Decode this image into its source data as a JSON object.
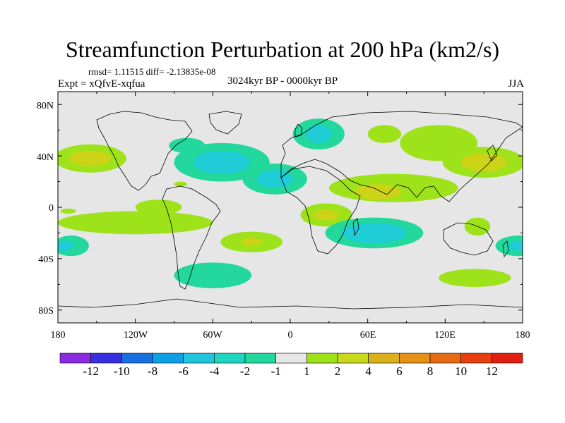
{
  "title": "Streamfunction Perturbation at 200 hPa (km2/s)",
  "stats": "rmsd= 1.11515 diff= -2.13835e-08",
  "experiment": "Expt = xQfvE-xqfua",
  "period": "3024kyr BP - 0000kyr BP",
  "season": "JJA",
  "axes": {
    "x_tick_labels": [
      "180",
      "120W",
      "60W",
      "0",
      "60E",
      "120E",
      "180"
    ],
    "y_tick_labels": [
      "80N",
      "40N",
      "0",
      "40S",
      "80S"
    ]
  },
  "colorbar": {
    "labels": [
      "-12",
      "-10",
      "-8",
      "-6",
      "-4",
      "-2",
      "-1",
      "1",
      "2",
      "4",
      "6",
      "8",
      "10",
      "12"
    ],
    "colors": [
      "#8a2be2",
      "#3a2fe0",
      "#1a6fe0",
      "#0ea0e6",
      "#20c4dc",
      "#1ed6c0",
      "#22d89c",
      "#e6e6e6",
      "#9ee21a",
      "#c8d81a",
      "#dcb01a",
      "#e69016",
      "#e66a12",
      "#e6400e",
      "#e02010"
    ]
  },
  "colors": {
    "background": "#e6e6e6",
    "neg1": "#22d89c",
    "neg2": "#1ecdd6",
    "pos1": "#9ee21a",
    "pos2": "#cdd418",
    "pos3": "#dcb01a"
  },
  "chart_data": {
    "type": "heatmap",
    "title": "Streamfunction Perturbation at 200 hPa (km2/s)",
    "xlabel": "",
    "ylabel": "",
    "xlim": [
      -180,
      180
    ],
    "ylim": [
      -90,
      90
    ],
    "level_boundaries": [
      -12,
      -10,
      -8,
      -6,
      -4,
      -2,
      -1,
      1,
      2,
      4,
      6,
      8,
      10,
      12
    ],
    "features": [
      {
        "sign": "positive",
        "lon": -155,
        "lat": 38,
        "rx": 28,
        "ry": 11,
        "level": 2
      },
      {
        "sign": "positive",
        "lon": -155,
        "lat": 38,
        "rx": 16,
        "ry": 6,
        "level": 4
      },
      {
        "sign": "negative",
        "lon": -80,
        "lat": 48,
        "rx": 14,
        "ry": 6,
        "level": -1
      },
      {
        "sign": "negative",
        "lon": -53,
        "lat": 35,
        "rx": 37,
        "ry": 15,
        "level": -1
      },
      {
        "sign": "negative",
        "lon": -53,
        "lat": 35,
        "rx": 22,
        "ry": 9,
        "level": -2
      },
      {
        "sign": "negative",
        "lon": -12,
        "lat": 22,
        "rx": 25,
        "ry": 12,
        "level": -1
      },
      {
        "sign": "negative",
        "lon": -12,
        "lat": 22,
        "rx": 14,
        "ry": 7,
        "level": -2
      },
      {
        "sign": "negative",
        "lon": 22,
        "lat": 57,
        "rx": 20,
        "ry": 12,
        "level": -1
      },
      {
        "sign": "negative",
        "lon": 22,
        "lat": 57,
        "rx": 10,
        "ry": 7,
        "level": -2
      },
      {
        "sign": "positive",
        "lon": 73,
        "lat": 57,
        "rx": 13,
        "ry": 7,
        "level": 2
      },
      {
        "sign": "positive",
        "lon": 115,
        "lat": 50,
        "rx": 30,
        "ry": 14,
        "level": 2
      },
      {
        "sign": "positive",
        "lon": 150,
        "lat": 35,
        "rx": 32,
        "ry": 12,
        "level": 2
      },
      {
        "sign": "positive",
        "lon": 150,
        "lat": 35,
        "rx": 18,
        "ry": 7,
        "level": 4
      },
      {
        "sign": "positive",
        "lon": 80,
        "lat": 15,
        "rx": 50,
        "ry": 11,
        "level": 2
      },
      {
        "sign": "positive",
        "lon": 68,
        "lat": 12,
        "rx": 18,
        "ry": 6,
        "level": 4
      },
      {
        "sign": "positive",
        "lon": 28,
        "lat": -6,
        "rx": 20,
        "ry": 9,
        "level": 2
      },
      {
        "sign": "positive",
        "lon": 28,
        "lat": -6,
        "rx": 10,
        "ry": 4,
        "level": 4
      },
      {
        "sign": "negative",
        "lon": 65,
        "lat": -20,
        "rx": 38,
        "ry": 12,
        "level": -1
      },
      {
        "sign": "negative",
        "lon": 65,
        "lat": -20,
        "rx": 25,
        "ry": 8,
        "level": -2
      },
      {
        "sign": "positive",
        "lon": 145,
        "lat": -15,
        "rx": 10,
        "ry": 7,
        "level": 2
      },
      {
        "sign": "negative",
        "lon": 177,
        "lat": -30,
        "rx": 18,
        "ry": 8,
        "level": -1
      },
      {
        "sign": "negative",
        "lon": 177,
        "lat": -30,
        "rx": 8,
        "ry": 4,
        "level": -2
      },
      {
        "sign": "negative",
        "lon": -170,
        "lat": -30,
        "rx": 14,
        "ry": 8,
        "level": -1
      },
      {
        "sign": "negative",
        "lon": -175,
        "lat": -30,
        "rx": 7,
        "ry": 4,
        "level": -2
      },
      {
        "sign": "positive",
        "lon": -120,
        "lat": -12,
        "rx": 60,
        "ry": 9,
        "level": 2
      },
      {
        "sign": "positive",
        "lon": -102,
        "lat": 0,
        "rx": 18,
        "ry": 6,
        "level": 2
      },
      {
        "sign": "positive",
        "lon": -30,
        "lat": -27,
        "rx": 24,
        "ry": 8,
        "level": 2
      },
      {
        "sign": "positive",
        "lon": -30,
        "lat": -27,
        "rx": 8,
        "ry": 3,
        "level": 4
      },
      {
        "sign": "negative",
        "lon": -60,
        "lat": -53,
        "rx": 30,
        "ry": 10,
        "level": -1
      },
      {
        "sign": "positive",
        "lon": 143,
        "lat": -55,
        "rx": 28,
        "ry": 7,
        "level": 2
      },
      {
        "sign": "positive",
        "lon": -172,
        "lat": -3,
        "rx": 6,
        "ry": 2,
        "level": 2
      },
      {
        "sign": "positive",
        "lon": -85,
        "lat": 18,
        "rx": 5,
        "ry": 2,
        "level": 2
      }
    ]
  }
}
